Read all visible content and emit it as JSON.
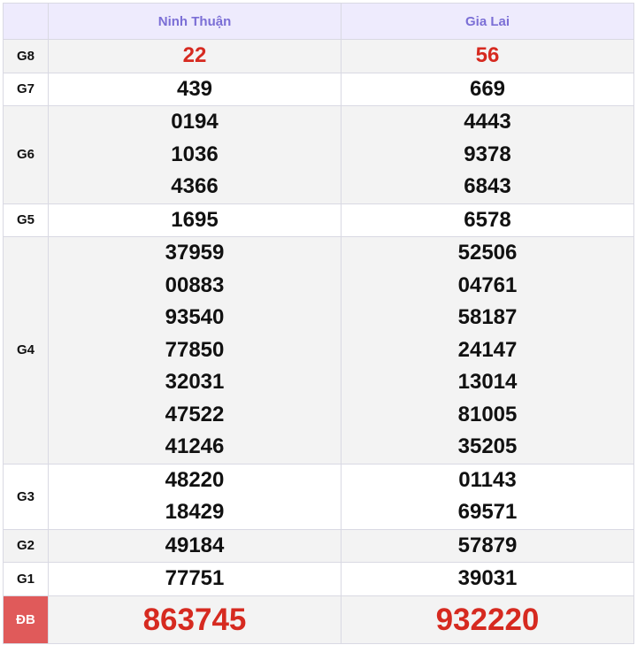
{
  "header": {
    "provinces": [
      "Ninh Thuận",
      "Gia Lai"
    ]
  },
  "rows": [
    {
      "label": "G8",
      "values": [
        [
          "22"
        ],
        [
          "56"
        ]
      ]
    },
    {
      "label": "G7",
      "values": [
        [
          "439"
        ],
        [
          "669"
        ]
      ]
    },
    {
      "label": "G6",
      "values": [
        [
          "0194",
          "1036",
          "4366"
        ],
        [
          "4443",
          "9378",
          "6843"
        ]
      ]
    },
    {
      "label": "G5",
      "values": [
        [
          "1695"
        ],
        [
          "6578"
        ]
      ]
    },
    {
      "label": "G4",
      "values": [
        [
          "37959",
          "00883",
          "93540",
          "77850",
          "32031",
          "47522",
          "41246"
        ],
        [
          "52506",
          "04761",
          "58187",
          "24147",
          "13014",
          "81005",
          "35205"
        ]
      ]
    },
    {
      "label": "G3",
      "values": [
        [
          "48220",
          "18429"
        ],
        [
          "01143",
          "69571"
        ]
      ]
    },
    {
      "label": "G2",
      "values": [
        [
          "49184"
        ],
        [
          "57879"
        ]
      ]
    },
    {
      "label": "G1",
      "values": [
        [
          "77751"
        ],
        [
          "39031"
        ]
      ]
    },
    {
      "label": "ĐB",
      "values": [
        [
          "863745"
        ],
        [
          "932220"
        ]
      ]
    }
  ],
  "colors": {
    "accent_red": "#d62a20",
    "header_text": "#7b6fd6",
    "header_bg": "#eeebfd",
    "db_label_bg": "#e05a5a"
  }
}
